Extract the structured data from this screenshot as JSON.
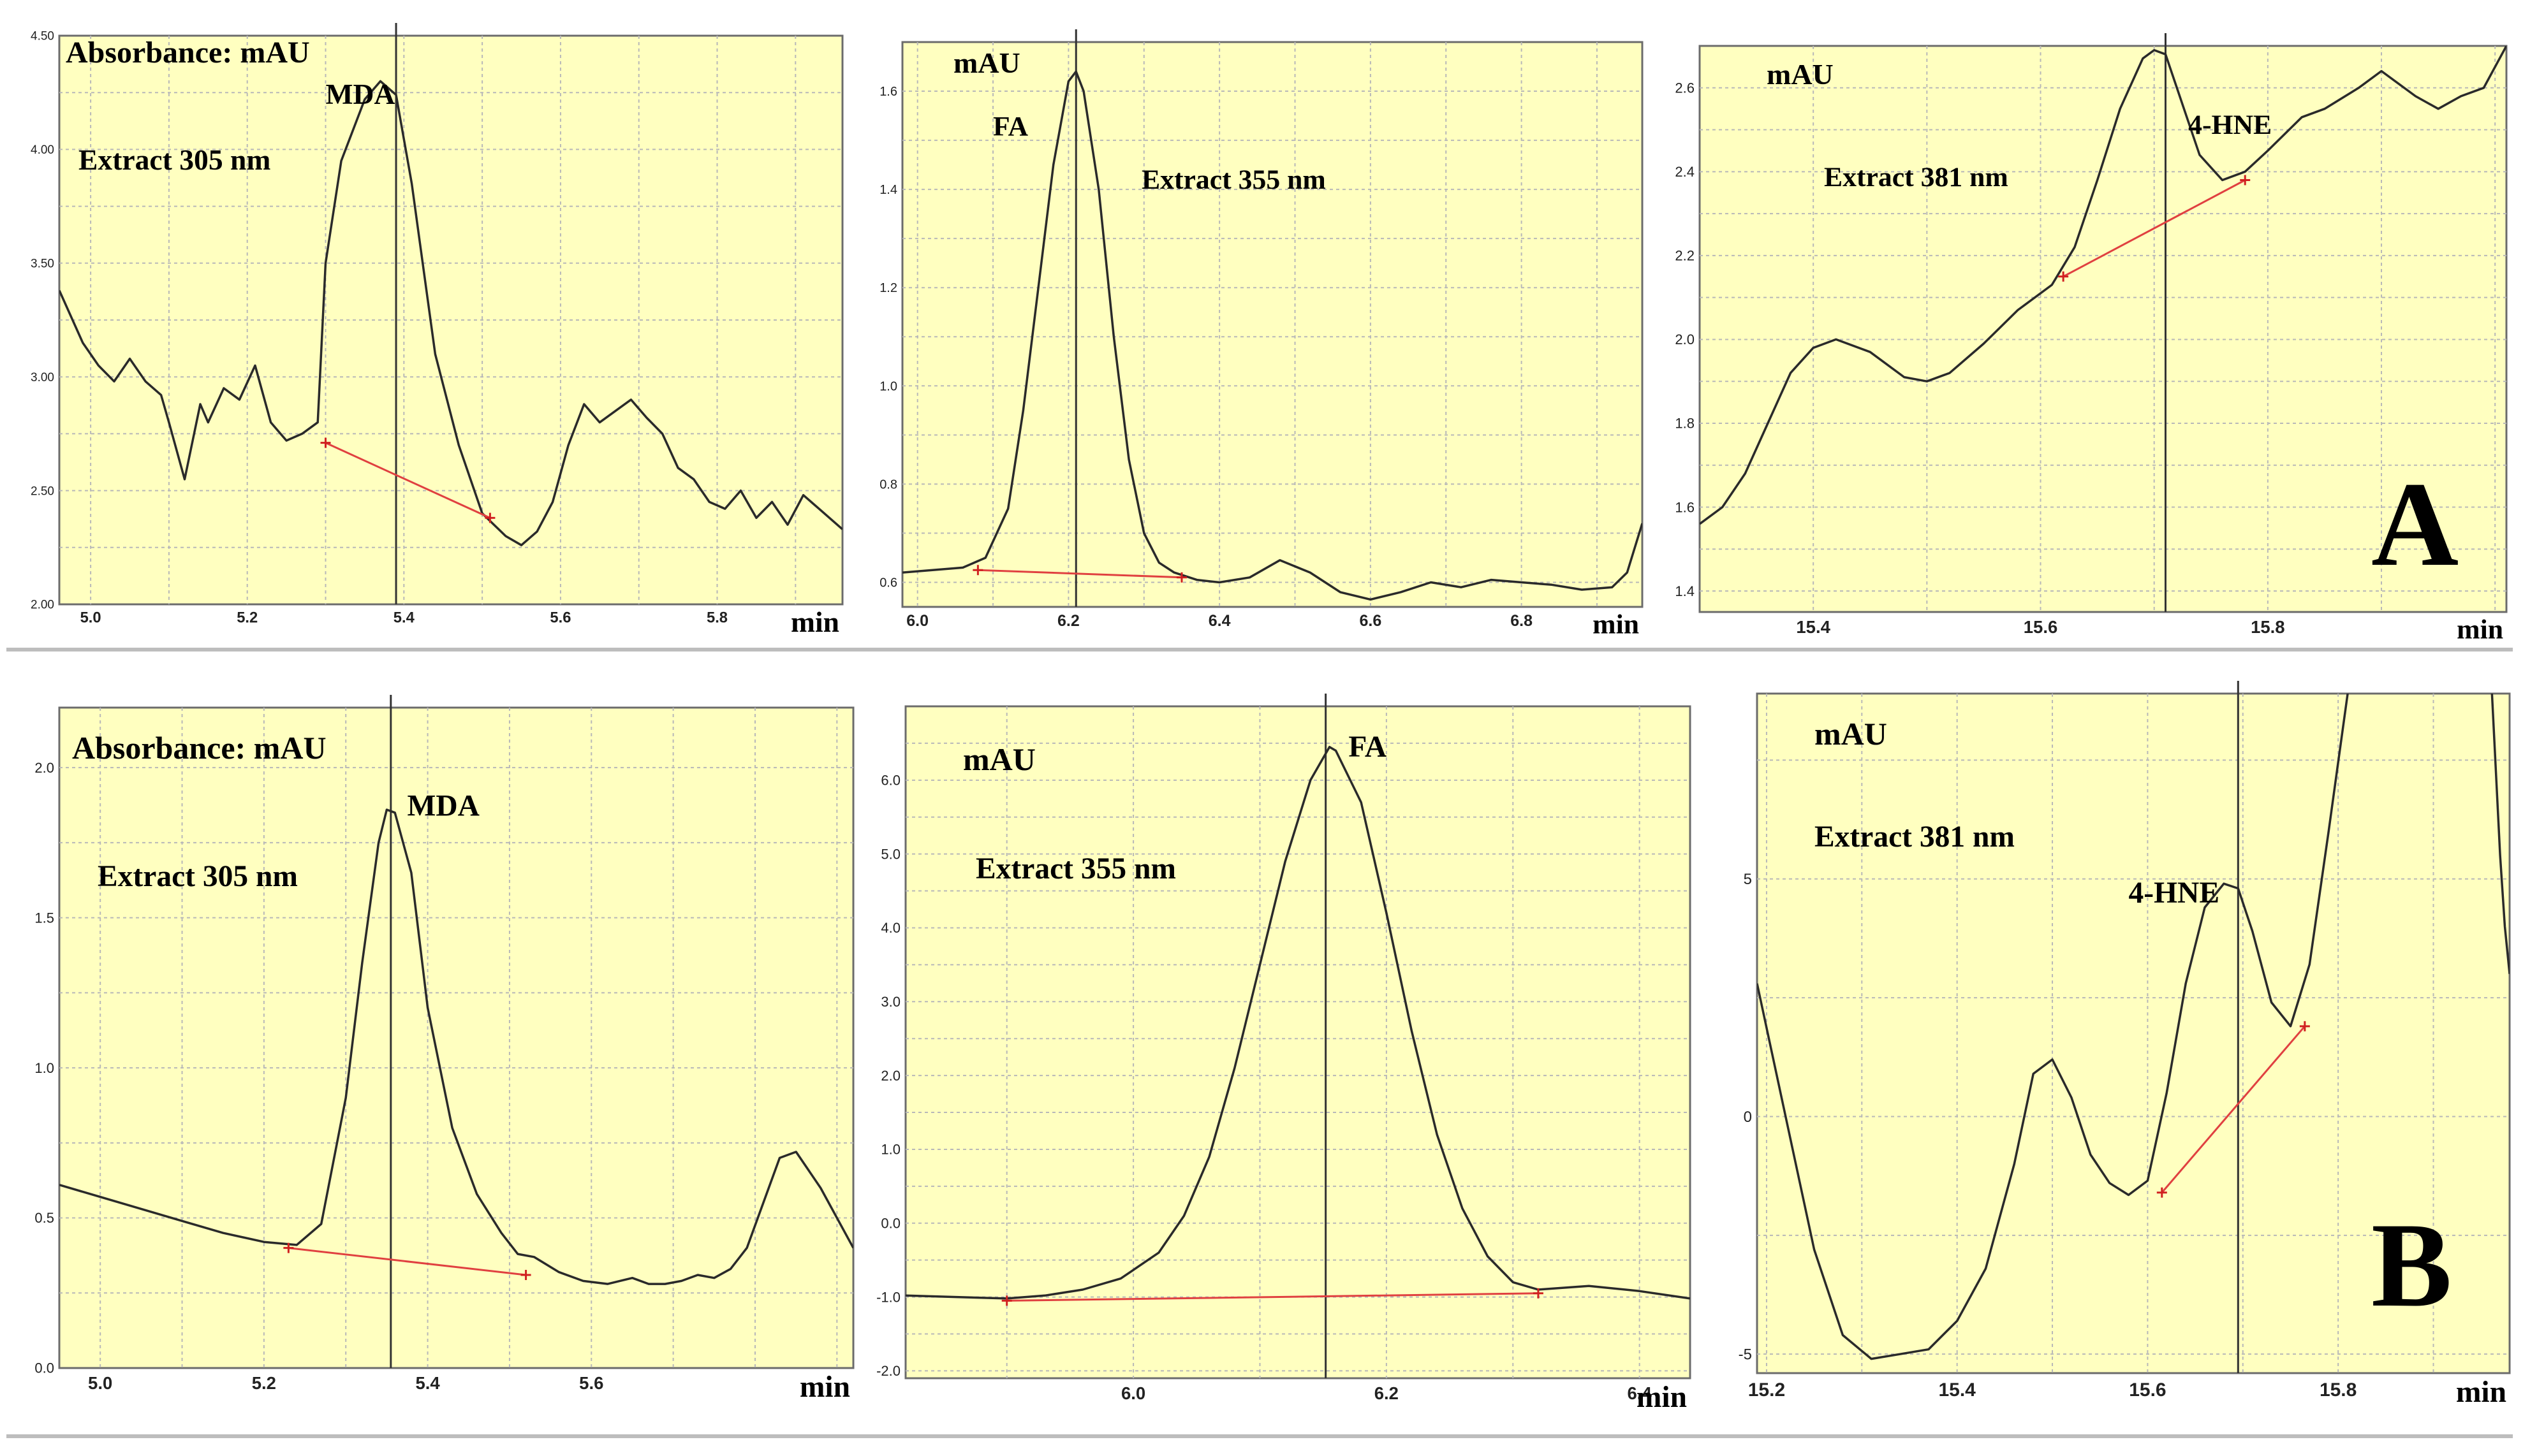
{
  "figure": {
    "label_a": "A",
    "label_b": "B"
  },
  "chart_data": [
    {
      "type": "line",
      "id": "p1",
      "title": "Absorbance: mAU",
      "wavelength": "Extract 305 nm",
      "peak_label": "MDA",
      "xlabel": "min",
      "xlim": [
        4.96,
        5.96
      ],
      "ylim": [
        2.0,
        4.5
      ],
      "xticks": [
        5.0,
        5.2,
        5.4,
        5.6,
        5.8
      ],
      "xtick_labels": [
        "5.0",
        "5.2",
        "5.4",
        "5.6",
        "5.8"
      ],
      "yticks": [
        2.0,
        2.5,
        3.0,
        3.5,
        4.0,
        4.5
      ],
      "ytick_labels": [
        "2.00",
        "2.50",
        "3.00",
        "3.50",
        "4.00",
        "4.50"
      ],
      "xtick_color": "#8b0000",
      "peak_x": 5.39,
      "peak_label_pos": [
        5.3,
        4.2
      ],
      "baseline": [
        [
          5.3,
          2.71
        ],
        [
          5.51,
          2.38
        ]
      ],
      "series": [
        {
          "x": [
            4.96,
            4.99,
            5.01,
            5.03,
            5.05,
            5.07,
            5.09,
            5.1,
            5.12,
            5.14,
            5.15,
            5.17,
            5.19,
            5.21,
            5.23,
            5.25,
            5.27,
            5.29,
            5.3,
            5.32,
            5.35,
            5.37,
            5.39,
            5.41,
            5.44,
            5.47,
            5.5,
            5.53,
            5.55,
            5.57,
            5.59,
            5.61,
            5.63,
            5.65,
            5.67,
            5.69,
            5.71,
            5.73,
            5.75,
            5.77,
            5.79,
            5.81,
            5.83,
            5.85,
            5.87,
            5.89,
            5.91,
            5.93,
            5.96
          ],
          "y": [
            3.38,
            3.15,
            3.05,
            2.98,
            3.08,
            2.98,
            2.92,
            2.8,
            2.55,
            2.88,
            2.8,
            2.95,
            2.9,
            3.05,
            2.8,
            2.72,
            2.75,
            2.8,
            3.5,
            3.95,
            4.22,
            4.3,
            4.24,
            3.85,
            3.1,
            2.7,
            2.4,
            2.3,
            2.26,
            2.32,
            2.45,
            2.7,
            2.88,
            2.8,
            2.85,
            2.9,
            2.82,
            2.75,
            2.6,
            2.55,
            2.45,
            2.42,
            2.5,
            2.38,
            2.45,
            2.35,
            2.48,
            2.42,
            2.33
          ]
        }
      ]
    },
    {
      "type": "line",
      "id": "p2",
      "title": "mAU",
      "wavelength": "Extract 355 nm",
      "peak_label": "FA",
      "xlabel": "min",
      "xlim": [
        5.98,
        6.96
      ],
      "ylim": [
        0.55,
        1.7
      ],
      "xticks": [
        6.0,
        6.2,
        6.4,
        6.6,
        6.8
      ],
      "xtick_labels": [
        "6.0",
        "6.2",
        "6.4",
        "6.6",
        "6.8"
      ],
      "yticks": [
        0.6,
        0.8,
        1.0,
        1.2,
        1.4,
        1.6
      ],
      "ytick_labels": [
        "0.6",
        "0.8",
        "1.0",
        "1.2",
        "1.4",
        "1.6"
      ],
      "xtick_color": "#222222",
      "peak_x": 6.21,
      "peak_label_pos": [
        6.1,
        1.51
      ],
      "baseline": [
        [
          6.08,
          0.625
        ],
        [
          6.35,
          0.61
        ]
      ],
      "series": [
        {
          "x": [
            5.98,
            6.02,
            6.06,
            6.09,
            6.12,
            6.14,
            6.16,
            6.18,
            6.2,
            6.21,
            6.22,
            6.24,
            6.26,
            6.28,
            6.3,
            6.32,
            6.34,
            6.37,
            6.4,
            6.44,
            6.48,
            6.52,
            6.56,
            6.6,
            6.64,
            6.68,
            6.72,
            6.76,
            6.8,
            6.84,
            6.88,
            6.92,
            6.94,
            6.96
          ],
          "y": [
            0.62,
            0.625,
            0.63,
            0.65,
            0.75,
            0.95,
            1.2,
            1.45,
            1.62,
            1.64,
            1.6,
            1.4,
            1.1,
            0.85,
            0.7,
            0.64,
            0.62,
            0.605,
            0.6,
            0.61,
            0.645,
            0.62,
            0.58,
            0.565,
            0.58,
            0.6,
            0.59,
            0.605,
            0.6,
            0.595,
            0.585,
            0.59,
            0.62,
            0.72
          ]
        }
      ]
    },
    {
      "type": "line",
      "id": "p3",
      "title": "mAU",
      "wavelength": "Extract 381 nm",
      "peak_label": "4-HNE",
      "xlabel": "min",
      "xlim": [
        15.3,
        16.01
      ],
      "ylim": [
        1.35,
        2.7
      ],
      "xticks": [
        15.4,
        15.6,
        15.8
      ],
      "xtick_labels": [
        "15.4",
        "15.6",
        "15.8"
      ],
      "yticks": [
        1.4,
        1.6,
        1.8,
        2.0,
        2.2,
        2.4,
        2.6
      ],
      "ytick_labels": [
        "1.4",
        "1.6",
        "1.8",
        "2.0",
        "2.2",
        "2.4",
        "2.6"
      ],
      "xtick_color": "#222222",
      "peak_x": 15.71,
      "peak_label_pos": [
        15.73,
        2.49
      ],
      "baseline": [
        [
          15.62,
          2.15
        ],
        [
          15.78,
          2.38
        ]
      ],
      "series": [
        {
          "x": [
            15.3,
            15.32,
            15.34,
            15.36,
            15.38,
            15.4,
            15.42,
            15.45,
            15.48,
            15.5,
            15.52,
            15.55,
            15.58,
            15.61,
            15.63,
            15.65,
            15.67,
            15.69,
            15.7,
            15.71,
            15.72,
            15.74,
            15.76,
            15.78,
            15.8,
            15.83,
            15.85,
            15.88,
            15.9,
            15.93,
            15.95,
            15.97,
            15.99,
            16.01
          ],
          "y": [
            1.56,
            1.6,
            1.68,
            1.8,
            1.92,
            1.98,
            2.0,
            1.97,
            1.91,
            1.9,
            1.92,
            1.99,
            2.07,
            2.13,
            2.22,
            2.38,
            2.55,
            2.67,
            2.69,
            2.68,
            2.6,
            2.44,
            2.38,
            2.4,
            2.45,
            2.53,
            2.55,
            2.6,
            2.64,
            2.58,
            2.55,
            2.58,
            2.6,
            2.7
          ]
        }
      ]
    },
    {
      "type": "line",
      "id": "p4",
      "title": "Absorbance: mAU",
      "wavelength": "Extract 305 nm",
      "peak_label": "MDA",
      "xlabel": "min",
      "xlim": [
        4.95,
        5.92
      ],
      "ylim": [
        0.0,
        2.2
      ],
      "xticks": [
        5.0,
        5.2,
        5.4,
        5.6
      ],
      "xtick_labels": [
        "5.0",
        "5.2",
        "5.4",
        "5.6"
      ],
      "yticks": [
        0.0,
        0.5,
        1.0,
        1.5,
        2.0
      ],
      "ytick_labels": [
        "0.0",
        "0.5",
        "1.0",
        "1.5",
        "2.0"
      ],
      "xtick_color": "#222222",
      "peak_x": 5.355,
      "peak_label_pos": [
        5.375,
        1.84
      ],
      "baseline": [
        [
          5.23,
          0.4
        ],
        [
          5.52,
          0.31
        ]
      ],
      "series": [
        {
          "x": [
            4.95,
            5.0,
            5.05,
            5.1,
            5.15,
            5.2,
            5.24,
            5.27,
            5.3,
            5.32,
            5.34,
            5.35,
            5.36,
            5.38,
            5.4,
            5.43,
            5.46,
            5.49,
            5.51,
            5.53,
            5.56,
            5.59,
            5.62,
            5.65,
            5.67,
            5.69,
            5.71,
            5.73,
            5.75,
            5.77,
            5.79,
            5.81,
            5.83,
            5.85,
            5.88,
            5.92
          ],
          "y": [
            0.61,
            0.57,
            0.53,
            0.49,
            0.45,
            0.42,
            0.41,
            0.48,
            0.9,
            1.35,
            1.75,
            1.86,
            1.85,
            1.65,
            1.2,
            0.8,
            0.58,
            0.45,
            0.38,
            0.37,
            0.32,
            0.29,
            0.28,
            0.3,
            0.28,
            0.28,
            0.29,
            0.31,
            0.3,
            0.33,
            0.4,
            0.55,
            0.7,
            0.72,
            0.6,
            0.4
          ]
        }
      ]
    },
    {
      "type": "line",
      "id": "p5",
      "title": "mAU",
      "wavelength": "Extract 355 nm",
      "peak_label": "FA",
      "xlabel": "min",
      "xlim": [
        5.82,
        6.44
      ],
      "ylim": [
        -2.1,
        7.0
      ],
      "xticks": [
        6.0,
        6.2,
        6.4
      ],
      "xtick_labels": [
        "6.0",
        "6.2",
        "6.4"
      ],
      "yticks": [
        -2.0,
        -1.0,
        0.0,
        1.0,
        2.0,
        3.0,
        4.0,
        5.0,
        6.0
      ],
      "ytick_labels": [
        "-2.0",
        "-1.0",
        "0.0",
        "1.0",
        "2.0",
        "3.0",
        "4.0",
        "5.0",
        "6.0"
      ],
      "xtick_color": "#222222",
      "peak_x": 6.152,
      "peak_label_pos": [
        6.17,
        6.32
      ],
      "baseline": [
        [
          5.9,
          -1.05
        ],
        [
          6.32,
          -0.95
        ]
      ],
      "series": [
        {
          "x": [
            5.82,
            5.86,
            5.9,
            5.93,
            5.96,
            5.99,
            6.02,
            6.04,
            6.06,
            6.08,
            6.1,
            6.12,
            6.14,
            6.155,
            6.16,
            6.18,
            6.2,
            6.22,
            6.24,
            6.26,
            6.28,
            6.3,
            6.32,
            6.36,
            6.4,
            6.44
          ],
          "y": [
            -0.98,
            -1.0,
            -1.02,
            -0.98,
            -0.9,
            -0.75,
            -0.4,
            0.1,
            0.9,
            2.1,
            3.5,
            4.9,
            6.0,
            6.45,
            6.4,
            5.7,
            4.2,
            2.6,
            1.2,
            0.2,
            -0.45,
            -0.8,
            -0.9,
            -0.85,
            -0.92,
            -1.02
          ]
        }
      ]
    },
    {
      "type": "line",
      "id": "p6",
      "title": "mAU",
      "wavelength": "Extract 381 nm",
      "peak_label": "4-HNE",
      "xlabel": "min",
      "xlim": [
        15.19,
        15.98
      ],
      "ylim": [
        -5.4,
        8.9
      ],
      "xticks": [
        15.2,
        15.4,
        15.6,
        15.8
      ],
      "xtick_labels": [
        "15.2",
        "15.4",
        "15.6",
        "15.8"
      ],
      "yticks": [
        -5,
        0,
        5
      ],
      "ytick_labels": [
        "-5",
        "0",
        "5"
      ],
      "xtick_color": "#222222",
      "peak_x": 15.695,
      "peak_label_pos": [
        15.58,
        4.5
      ],
      "baseline": [
        [
          15.615,
          -1.6
        ],
        [
          15.765,
          1.9
        ]
      ],
      "series": [
        {
          "x": [
            15.19,
            15.22,
            15.25,
            15.28,
            15.31,
            15.34,
            15.37,
            15.4,
            15.43,
            15.46,
            15.48,
            15.5,
            15.52,
            15.54,
            15.56,
            15.58,
            15.6,
            15.62,
            15.64,
            15.66,
            15.68,
            15.695,
            15.71,
            15.73,
            15.75,
            15.77,
            15.79,
            15.81,
            15.82
          ],
          "y": [
            2.8,
            0.0,
            -2.8,
            -4.6,
            -5.1,
            -5.0,
            -4.9,
            -4.3,
            -3.2,
            -1.0,
            0.9,
            1.2,
            0.4,
            -0.8,
            -1.4,
            -1.65,
            -1.35,
            0.5,
            2.8,
            4.4,
            4.9,
            4.8,
            3.9,
            2.4,
            1.9,
            3.2,
            6.0,
            8.9,
            10.0
          ]
        },
        {
          "x": [
            15.96,
            15.965,
            15.97,
            15.975,
            15.98
          ],
          "y": [
            9.5,
            7.5,
            5.5,
            4.0,
            3.0
          ]
        }
      ]
    }
  ]
}
